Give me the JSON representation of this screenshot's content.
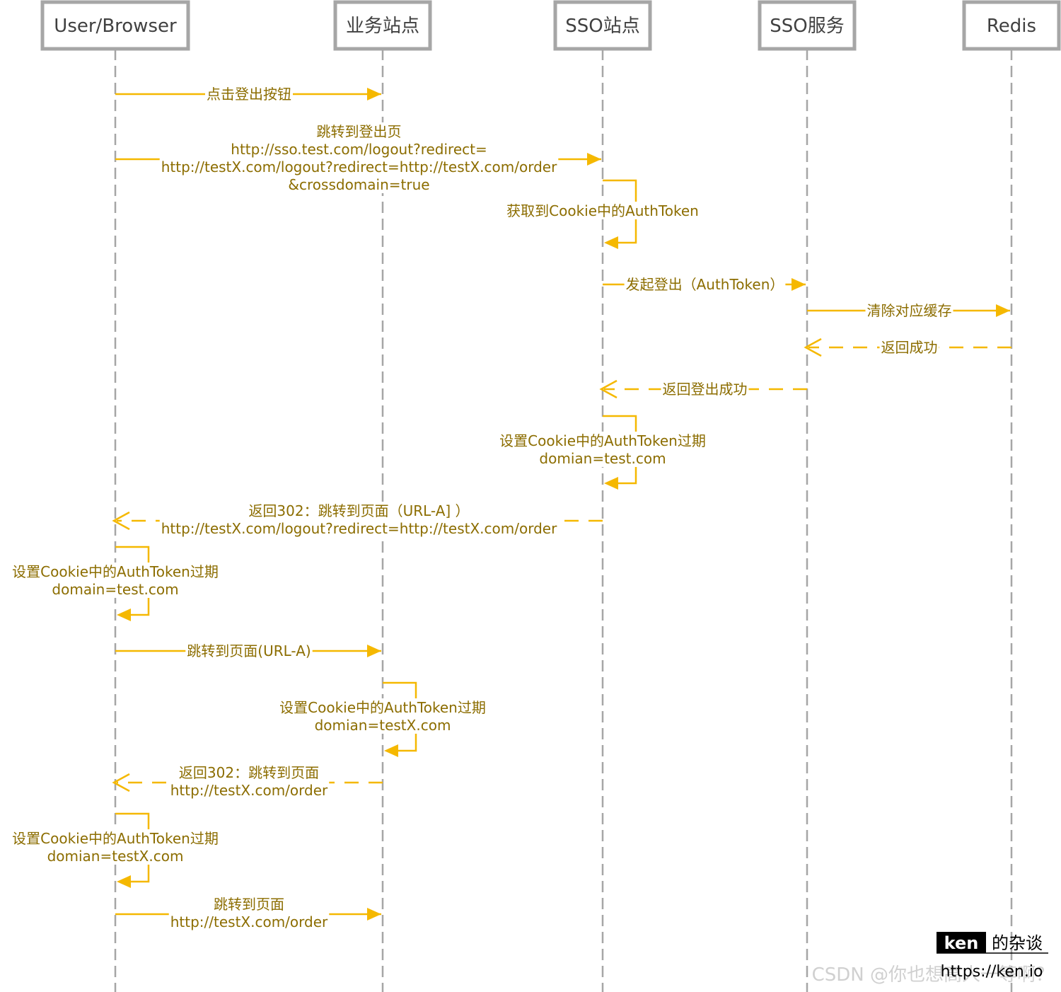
{
  "participants": [
    {
      "id": "user",
      "label": "User/Browser"
    },
    {
      "id": "biz",
      "label": "业务站点"
    },
    {
      "id": "sso",
      "label": "SSO站点"
    },
    {
      "id": "ssosvc",
      "label": "SSO服务"
    },
    {
      "id": "redis",
      "label": "Redis"
    }
  ],
  "messages": [
    {
      "type": "call",
      "from": "user",
      "to": "biz",
      "lines": [
        "点击登出按钮"
      ]
    },
    {
      "type": "call",
      "from": "user",
      "to": "sso",
      "lines": [
        "跳转到登出页",
        "http://sso.test.com/logout?redirect=",
        "http://testX.com/logout?redirect=http://testX.com/order",
        "&crossdomain=true"
      ]
    },
    {
      "type": "self",
      "at": "sso",
      "lines": [
        "获取到Cookie中的AuthToken"
      ]
    },
    {
      "type": "call",
      "from": "sso",
      "to": "ssosvc",
      "lines": [
        "发起登出（AuthToken）"
      ]
    },
    {
      "type": "call",
      "from": "ssosvc",
      "to": "redis",
      "lines": [
        "清除对应缓存"
      ]
    },
    {
      "type": "return",
      "from": "redis",
      "to": "ssosvc",
      "lines": [
        "返回成功"
      ]
    },
    {
      "type": "return",
      "from": "ssosvc",
      "to": "sso",
      "lines": [
        "返回登出成功"
      ]
    },
    {
      "type": "self",
      "at": "sso",
      "lines": [
        "设置Cookie中的AuthToken过期",
        "domian=test.com"
      ]
    },
    {
      "type": "return",
      "from": "sso",
      "to": "user",
      "lines": [
        "返回302：跳转到页面（URL-A]  ）",
        "http://testX.com/logout?redirect=http://testX.com/order"
      ]
    },
    {
      "type": "self",
      "at": "user",
      "lines": [
        "设置Cookie中的AuthToken过期",
        "domain=test.com"
      ]
    },
    {
      "type": "call",
      "from": "user",
      "to": "biz",
      "lines": [
        "跳转到页面(URL-A)"
      ]
    },
    {
      "type": "self",
      "at": "biz",
      "lines": [
        "设置Cookie中的AuthToken过期",
        "domian=testX.com"
      ]
    },
    {
      "type": "return",
      "from": "biz",
      "to": "user",
      "lines": [
        "返回302：跳转到页面",
        "http://testX.com/order"
      ]
    },
    {
      "type": "self",
      "at": "user",
      "lines": [
        "设置Cookie中的AuthToken过期",
        "domian=testX.com"
      ]
    },
    {
      "type": "call",
      "from": "user",
      "to": "biz",
      "lines": [
        "跳转到页面",
        "http://testX.com/order"
      ]
    }
  ],
  "watermark": {
    "brand": "ken",
    "brand_suffix": "的杂谈",
    "url": "https://ken.io",
    "csdn": "CSDN @你也想高人一等啊？"
  },
  "colors": {
    "message": "#f5b800",
    "message_text": "#8c6d00",
    "actor_border": "#a6a6a6",
    "actor_text": "#404040"
  }
}
